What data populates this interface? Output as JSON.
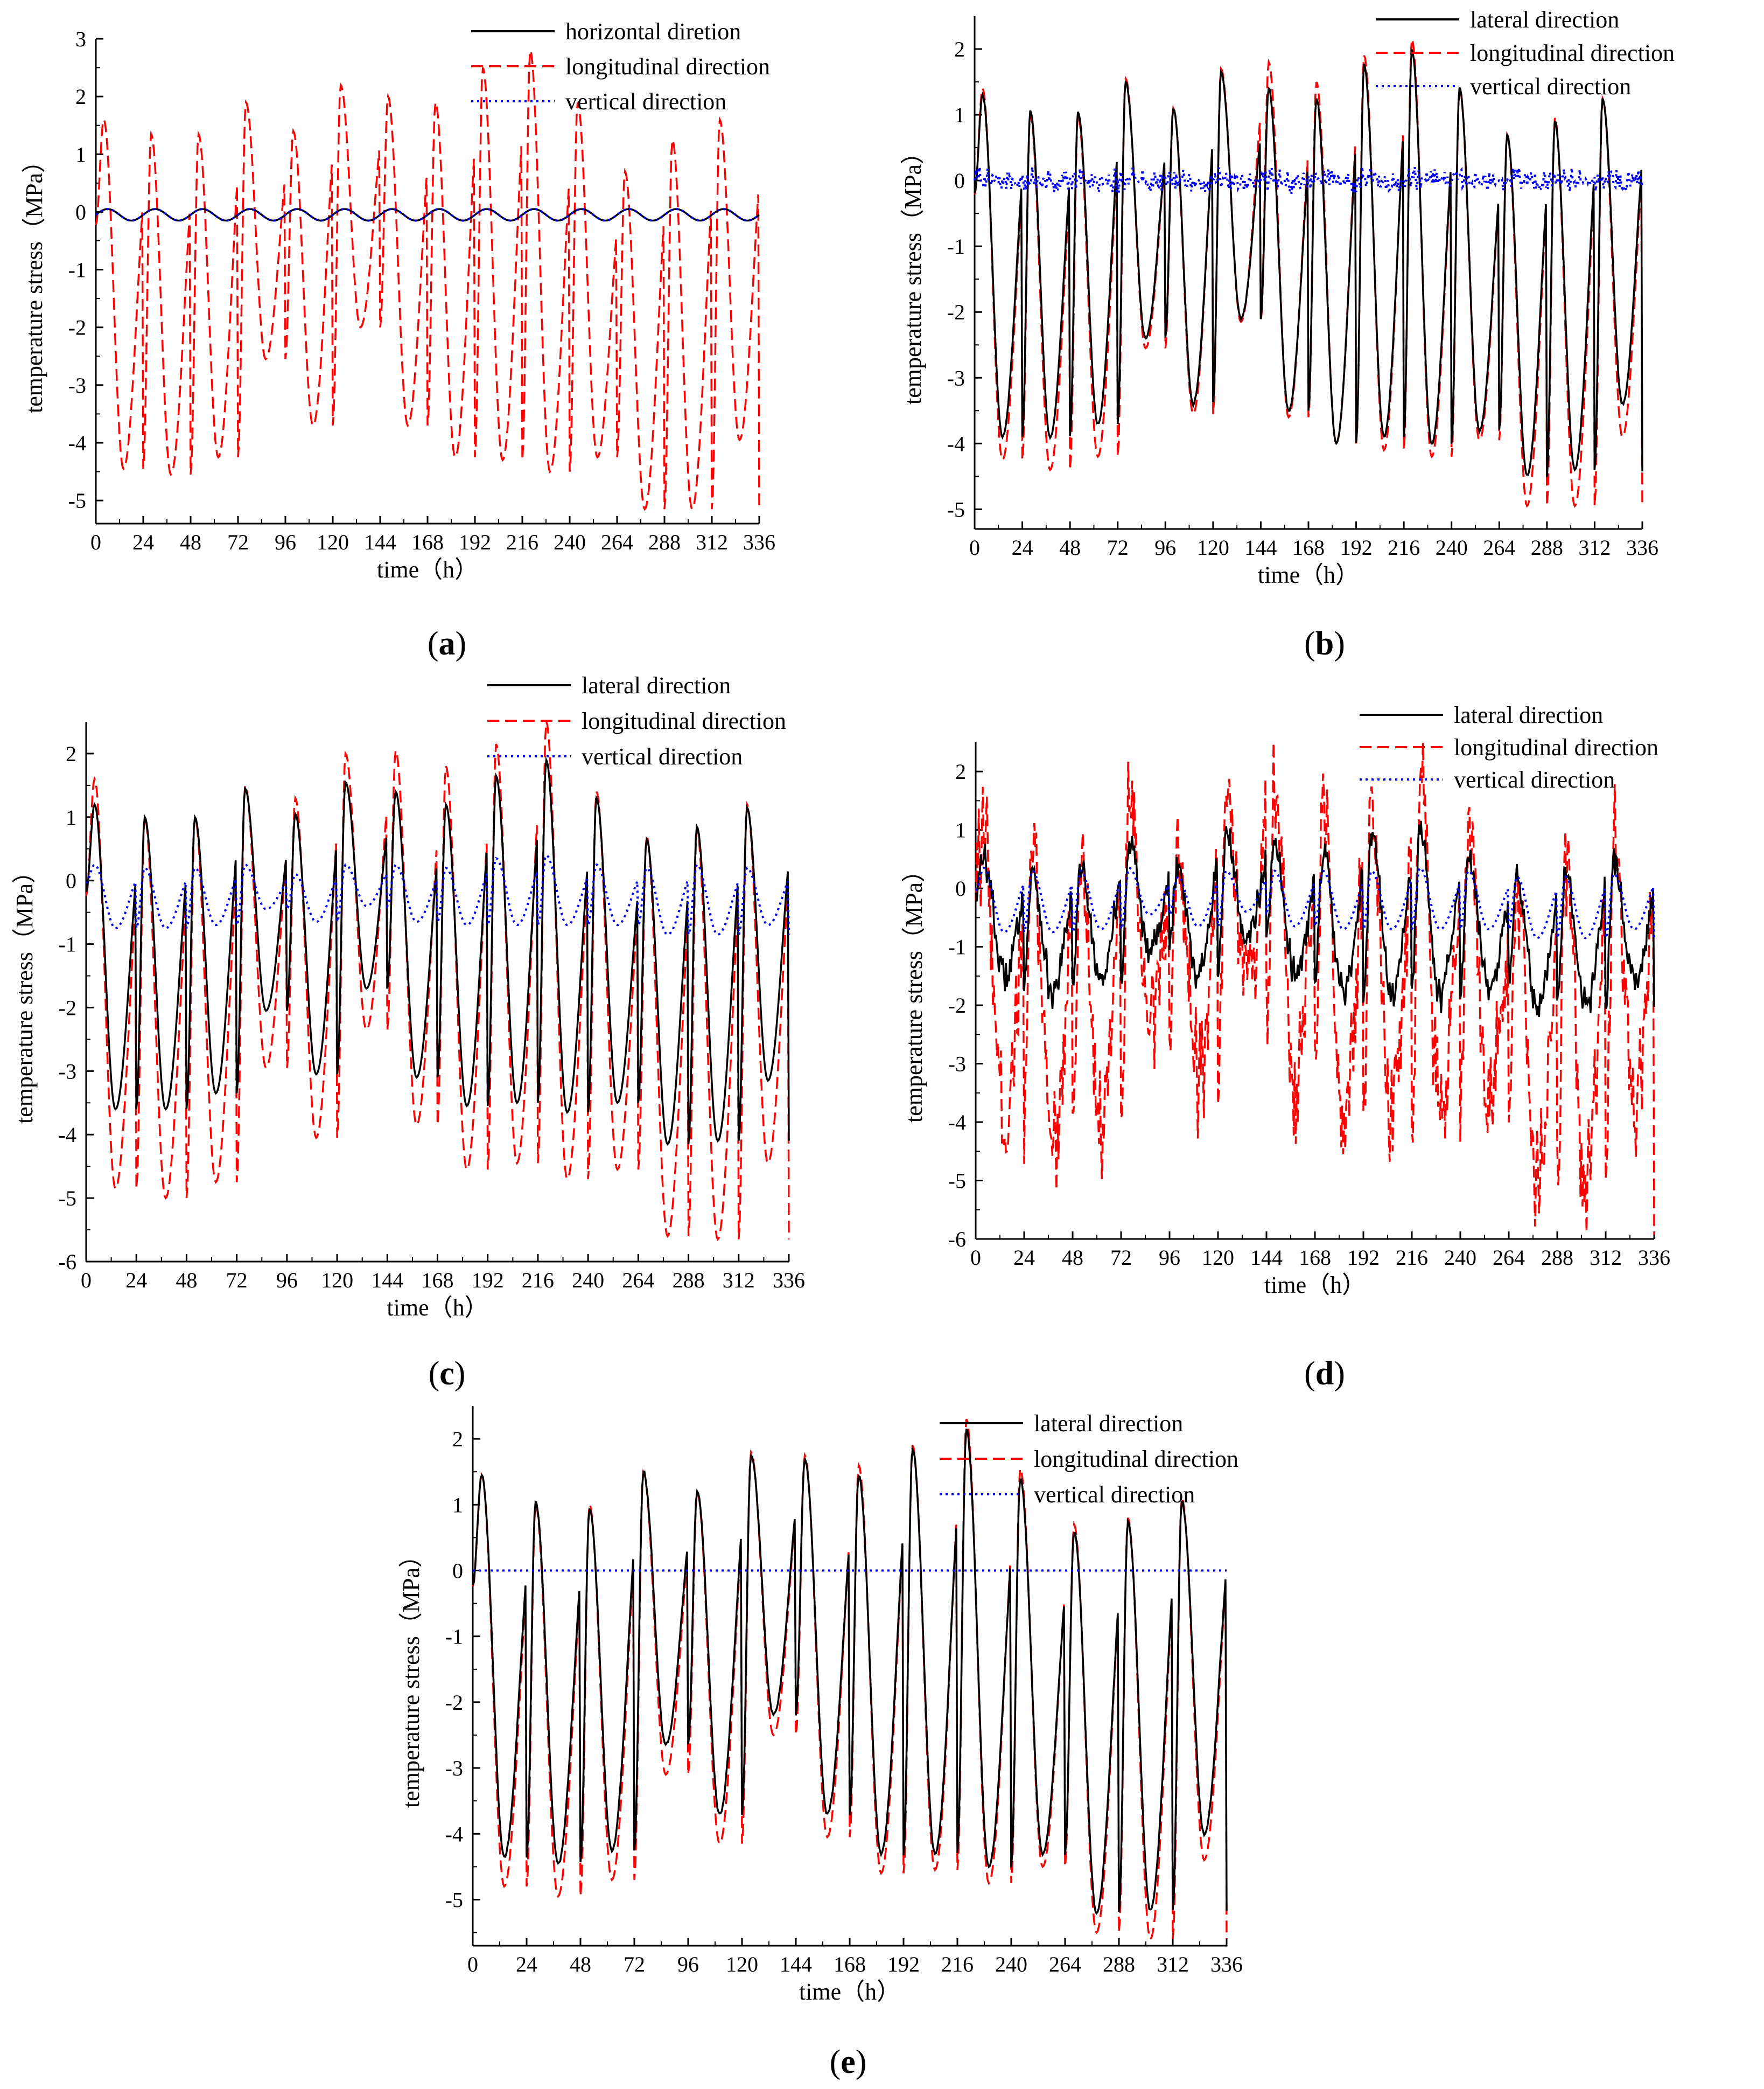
{
  "chart_data": [
    {
      "type": "line",
      "panel_label": "a",
      "xlabel": "time（h）",
      "ylabel": "temperature stress（MPa）",
      "xlim": [
        0,
        336
      ],
      "ylim": [
        -5.4,
        3.0
      ],
      "xticks": [
        "0",
        "24",
        "48",
        "72",
        "96",
        "120",
        "144",
        "168",
        "192",
        "216",
        "240",
        "264",
        "288",
        "312",
        "336"
      ],
      "yticks": [
        "3",
        "2",
        "1",
        "0",
        "-1",
        "-2",
        "-3",
        "-4",
        "-5"
      ],
      "legend_position": "top-right",
      "series": [
        {
          "name": "horizontal diretion",
          "color": "#000000",
          "dash": "solid",
          "model": {
            "mean": -0.05,
            "amp": 0.1,
            "noise": 0,
            "minima": [
              0,
              0,
              0,
              0,
              0,
              0,
              0,
              0,
              0,
              0,
              0,
              0,
              0,
              0
            ],
            "maxima": [
              0,
              0,
              0,
              0,
              0,
              0,
              0,
              0,
              0,
              0,
              0,
              0,
              0,
              0
            ]
          }
        },
        {
          "name": "longitudinal direction",
          "color": "#ff0000",
          "dash": "dashed",
          "model": {
            "noise": 0,
            "maxima": [
              1.6,
              1.35,
              1.35,
              1.9,
              1.4,
              2.2,
              2.0,
              1.9,
              2.5,
              2.8,
              1.9,
              0.7,
              1.25,
              1.6
            ],
            "minima": [
              -4.45,
              -4.55,
              -4.25,
              -2.55,
              -3.7,
              -2.0,
              -3.7,
              -4.25,
              -4.3,
              -4.5,
              -4.25,
              -5.15,
              -5.15,
              -3.95
            ]
          }
        },
        {
          "name": "vertical direction",
          "color": "#0000ff",
          "dash": "dotted",
          "model": {
            "mean": -0.05,
            "amp": 0.1,
            "noise": 0,
            "minima": [
              0,
              0,
              0,
              0,
              0,
              0,
              0,
              0,
              0,
              0,
              0,
              0,
              0,
              0
            ],
            "maxima": [
              0,
              0,
              0,
              0,
              0,
              0,
              0,
              0,
              0,
              0,
              0,
              0,
              0,
              0
            ]
          }
        }
      ]
    },
    {
      "type": "line",
      "panel_label": "b",
      "xlabel": "time（h）",
      "ylabel": "temperature stress（MPa）",
      "xlim": [
        0,
        336
      ],
      "ylim": [
        -5.3,
        2.5
      ],
      "xticks": [
        "0",
        "24",
        "48",
        "72",
        "96",
        "120",
        "144",
        "168",
        "192",
        "216",
        "240",
        "264",
        "288",
        "312",
        "336"
      ],
      "yticks": [
        "2",
        "1",
        "0",
        "-1",
        "-2",
        "-3",
        "-4",
        "-5"
      ],
      "legend_position": "top-right",
      "series": [
        {
          "name": "lateral direction",
          "color": "#000000",
          "dash": "solid",
          "model": {
            "noise": 0.03,
            "maxima": [
              1.3,
              1.05,
              1.05,
              1.5,
              1.1,
              1.65,
              1.4,
              1.25,
              1.75,
              2.0,
              1.4,
              0.7,
              0.9,
              1.25
            ],
            "minima": [
              -3.9,
              -3.9,
              -3.7,
              -2.4,
              -3.4,
              -2.1,
              -3.5,
              -4.0,
              -3.9,
              -4.0,
              -3.8,
              -4.5,
              -4.4,
              -3.4
            ]
          }
        },
        {
          "name": "longitudinal direction",
          "color": "#ff0000",
          "dash": "dashed",
          "model": {
            "noise": 0,
            "maxima": [
              1.4,
              1.0,
              1.0,
              1.55,
              1.1,
              1.7,
              1.8,
              1.5,
              1.9,
              2.15,
              1.4,
              0.7,
              0.95,
              1.25
            ],
            "minima": [
              -4.25,
              -4.4,
              -4.2,
              -2.55,
              -3.55,
              -2.15,
              -3.6,
              -4.0,
              -4.1,
              -4.2,
              -3.95,
              -4.95,
              -4.95,
              -3.9
            ]
          }
        },
        {
          "name": "vertical direction",
          "color": "#0000ff",
          "dash": "dotted",
          "model": {
            "mean": 0.0,
            "amp": 0.03,
            "noise": 0.2,
            "minima": [
              0,
              0,
              0,
              0,
              0,
              0,
              0,
              0,
              0,
              0,
              0,
              0,
              0,
              0
            ],
            "maxima": [
              0,
              0,
              0,
              0,
              0,
              0,
              0,
              0,
              0,
              0,
              0,
              0,
              0,
              0
            ]
          }
        }
      ]
    },
    {
      "type": "line",
      "panel_label": "c",
      "xlabel": "time（h）",
      "ylabel": "temperature stress（MPa）",
      "xlim": [
        0,
        336
      ],
      "ylim": [
        -6.0,
        2.5
      ],
      "xticks": [
        "0",
        "24",
        "48",
        "72",
        "96",
        "120",
        "144",
        "168",
        "192",
        "216",
        "240",
        "264",
        "288",
        "312",
        "336"
      ],
      "yticks": [
        "2",
        "1",
        "0",
        "-1",
        "-2",
        "-3",
        "-4",
        "-5",
        "-6"
      ],
      "legend_position": "top-right",
      "series": [
        {
          "name": "lateral direction",
          "color": "#000000",
          "dash": "solid",
          "model": {
            "noise": 0,
            "maxima": [
              1.2,
              1.0,
              1.0,
              1.45,
              1.05,
              1.55,
              1.4,
              1.2,
              1.65,
              1.9,
              1.3,
              0.65,
              0.85,
              1.15
            ],
            "minima": [
              -3.6,
              -3.6,
              -3.35,
              -2.05,
              -3.05,
              -1.7,
              -3.1,
              -3.55,
              -3.5,
              -3.65,
              -3.5,
              -4.15,
              -4.1,
              -3.15
            ]
          }
        },
        {
          "name": "longitudinal direction",
          "color": "#ff0000",
          "dash": "dashed",
          "model": {
            "noise": 0,
            "maxima": [
              1.6,
              1.0,
              1.0,
              1.5,
              1.3,
              2.0,
              2.05,
              1.8,
              2.15,
              2.5,
              1.4,
              0.7,
              0.8,
              1.2
            ],
            "minima": [
              -4.85,
              -5.0,
              -4.75,
              -2.95,
              -4.05,
              -2.35,
              -3.85,
              -4.55,
              -4.45,
              -4.7,
              -4.55,
              -5.6,
              -5.65,
              -4.45
            ]
          }
        },
        {
          "name": "vertical direction",
          "color": "#0000ff",
          "dash": "dotted",
          "model": {
            "noise": 0,
            "maxima": [
              0.25,
              0.2,
              0.2,
              0.25,
              0.1,
              0.25,
              0.25,
              0.2,
              0.35,
              0.4,
              0.25,
              0.2,
              0.25,
              0.2
            ],
            "minima": [
              -0.75,
              -0.75,
              -0.7,
              -0.45,
              -0.65,
              -0.4,
              -0.65,
              -0.7,
              -0.7,
              -0.7,
              -0.7,
              -0.85,
              -0.85,
              -0.7
            ]
          }
        }
      ]
    },
    {
      "type": "line",
      "panel_label": "d",
      "xlabel": "time（h）",
      "ylabel": "temperature stress（MPa）",
      "xlim": [
        0,
        336
      ],
      "ylim": [
        -6.0,
        2.5
      ],
      "xticks": [
        "0",
        "24",
        "48",
        "72",
        "96",
        "120",
        "144",
        "168",
        "192",
        "216",
        "240",
        "264",
        "288",
        "312",
        "336"
      ],
      "yticks": [
        "2",
        "1",
        "0",
        "-1",
        "-2",
        "-3",
        "-4",
        "-5",
        "-6"
      ],
      "legend_position": "top-right",
      "series": [
        {
          "name": "lateral direction",
          "color": "#000000",
          "dash": "solid",
          "model": {
            "noise": 0.35,
            "maxima": [
              0.5,
              0.3,
              0.4,
              0.8,
              0.45,
              0.9,
              0.7,
              0.6,
              0.95,
              1.0,
              0.6,
              0.2,
              0.3,
              0.5
            ],
            "minima": [
              -1.5,
              -1.8,
              -1.6,
              -1.0,
              -1.5,
              -0.8,
              -1.5,
              -1.8,
              -1.8,
              -1.8,
              -1.7,
              -2.0,
              -2.0,
              -1.6
            ]
          }
        },
        {
          "name": "longitudinal direction",
          "color": "#ff0000",
          "dash": "dashed",
          "model": {
            "noise": 1.2,
            "maxima": [
              1.0,
              0.6,
              0.6,
              1.3,
              0.8,
              1.5,
              1.6,
              1.3,
              1.6,
              1.9,
              0.9,
              0.2,
              0.5,
              0.9
            ],
            "minima": [
              -4.0,
              -4.3,
              -4.0,
              -2.3,
              -3.3,
              -1.8,
              -3.3,
              -3.7,
              -3.9,
              -4.0,
              -3.8,
              -4.9,
              -4.9,
              -3.7
            ]
          }
        },
        {
          "name": "vertical direction",
          "color": "#0000ff",
          "dash": "dotted",
          "model": {
            "noise": 0,
            "maxima": [
              0.35,
              0.3,
              0.3,
              0.35,
              0.2,
              0.3,
              0.3,
              0.3,
              0.3,
              0.35,
              0.3,
              0.2,
              0.2,
              0.25
            ],
            "minima": [
              -0.75,
              -0.75,
              -0.7,
              -0.45,
              -0.65,
              -0.4,
              -0.65,
              -0.7,
              -0.7,
              -0.7,
              -0.7,
              -0.85,
              -0.85,
              -0.7
            ]
          }
        }
      ]
    },
    {
      "type": "line",
      "panel_label": "e",
      "xlabel": "time（h）",
      "ylabel": "temperature stress（MPa）",
      "xlim": [
        0,
        336
      ],
      "ylim": [
        -5.7,
        2.5
      ],
      "xticks": [
        "0",
        "24",
        "48",
        "72",
        "96",
        "120",
        "144",
        "168",
        "192",
        "216",
        "240",
        "264",
        "288",
        "312",
        "336"
      ],
      "yticks": [
        "2",
        "1",
        "0",
        "-1",
        "-2",
        "-3",
        "-4",
        "-5"
      ],
      "legend_position": "top-right",
      "series": [
        {
          "name": "lateral direction",
          "color": "#000000",
          "dash": "solid",
          "model": {
            "noise": 0.03,
            "maxima": [
              1.45,
              1.05,
              0.95,
              1.5,
              1.2,
              1.75,
              1.7,
              1.45,
              1.85,
              2.15,
              1.4,
              0.6,
              0.75,
              1.05
            ],
            "minima": [
              -4.35,
              -4.45,
              -4.25,
              -2.65,
              -3.7,
              -2.2,
              -3.7,
              -4.3,
              -4.3,
              -4.5,
              -4.3,
              -5.2,
              -5.15,
              -4.0
            ]
          }
        },
        {
          "name": "longitudinal direction",
          "color": "#ff0000",
          "dash": "dashed",
          "model": {
            "noise": 0,
            "maxima": [
              1.45,
              1.0,
              1.0,
              1.5,
              1.2,
              1.8,
              1.75,
              1.6,
              1.9,
              2.3,
              1.55,
              0.7,
              0.8,
              1.1
            ],
            "minima": [
              -4.8,
              -4.95,
              -4.7,
              -3.1,
              -4.15,
              -2.5,
              -4.05,
              -4.6,
              -4.55,
              -4.75,
              -4.5,
              -5.5,
              -5.6,
              -4.4
            ]
          }
        },
        {
          "name": "vertical direction",
          "color": "#0000ff",
          "dash": "dotted",
          "model": {
            "mean": 0.0,
            "amp": 0.0,
            "noise": 0,
            "minima": [
              0,
              0,
              0,
              0,
              0,
              0,
              0,
              0,
              0,
              0,
              0,
              0,
              0,
              0
            ],
            "maxima": [
              0,
              0,
              0,
              0,
              0,
              0,
              0,
              0,
              0,
              0,
              0,
              0,
              0,
              0
            ]
          }
        }
      ]
    }
  ]
}
